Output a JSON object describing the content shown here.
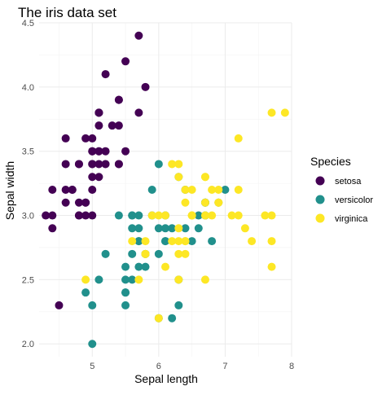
{
  "chart_data": {
    "type": "scatter",
    "title": "The iris data set",
    "xlabel": "Sepal length",
    "ylabel": "Sepal width",
    "xlim": [
      4.2,
      8.0
    ],
    "ylim": [
      1.9,
      4.5
    ],
    "x_ticks": [
      5,
      6,
      7,
      8
    ],
    "y_ticks": [
      2.0,
      2.5,
      3.0,
      3.5,
      4.0,
      4.5
    ],
    "y_tick_labels": [
      "2.0",
      "2.5",
      "3.0",
      "3.5",
      "4.0",
      "4.5"
    ],
    "grid": true,
    "legend": {
      "title": "Species",
      "position": "right"
    },
    "series": [
      {
        "name": "setosa",
        "color": "#440154",
        "points": [
          [
            5.1,
            3.5
          ],
          [
            4.9,
            3.0
          ],
          [
            4.7,
            3.2
          ],
          [
            4.6,
            3.1
          ],
          [
            5.0,
            3.6
          ],
          [
            5.4,
            3.9
          ],
          [
            4.6,
            3.4
          ],
          [
            5.0,
            3.4
          ],
          [
            4.4,
            2.9
          ],
          [
            4.9,
            3.1
          ],
          [
            5.4,
            3.7
          ],
          [
            4.8,
            3.4
          ],
          [
            4.8,
            3.0
          ],
          [
            4.3,
            3.0
          ],
          [
            5.8,
            4.0
          ],
          [
            5.7,
            4.4
          ],
          [
            5.4,
            3.9
          ],
          [
            5.1,
            3.5
          ],
          [
            5.7,
            3.8
          ],
          [
            5.1,
            3.8
          ],
          [
            5.4,
            3.4
          ],
          [
            5.1,
            3.7
          ],
          [
            4.6,
            3.6
          ],
          [
            5.1,
            3.3
          ],
          [
            4.8,
            3.4
          ],
          [
            5.0,
            3.0
          ],
          [
            5.0,
            3.4
          ],
          [
            5.2,
            3.5
          ],
          [
            5.2,
            3.4
          ],
          [
            4.7,
            3.2
          ],
          [
            4.8,
            3.1
          ],
          [
            5.4,
            3.4
          ],
          [
            5.2,
            4.1
          ],
          [
            5.5,
            4.2
          ],
          [
            4.9,
            3.1
          ],
          [
            5.0,
            3.2
          ],
          [
            5.5,
            3.5
          ],
          [
            4.9,
            3.6
          ],
          [
            4.4,
            3.0
          ],
          [
            5.1,
            3.4
          ],
          [
            5.0,
            3.5
          ],
          [
            4.5,
            2.3
          ],
          [
            4.4,
            3.2
          ],
          [
            5.0,
            3.5
          ],
          [
            5.1,
            3.8
          ],
          [
            4.8,
            3.0
          ],
          [
            5.1,
            3.8
          ],
          [
            4.6,
            3.2
          ],
          [
            5.3,
            3.7
          ],
          [
            5.0,
            3.3
          ]
        ]
      },
      {
        "name": "versicolor",
        "color": "#21908c",
        "points": [
          [
            7.0,
            3.2
          ],
          [
            6.4,
            3.2
          ],
          [
            6.9,
            3.1
          ],
          [
            5.5,
            2.3
          ],
          [
            6.5,
            2.8
          ],
          [
            5.7,
            2.8
          ],
          [
            6.3,
            3.3
          ],
          [
            4.9,
            2.4
          ],
          [
            6.6,
            2.9
          ],
          [
            5.2,
            2.7
          ],
          [
            5.0,
            2.0
          ],
          [
            5.9,
            3.0
          ],
          [
            6.0,
            2.2
          ],
          [
            6.1,
            2.9
          ],
          [
            5.6,
            2.9
          ],
          [
            6.7,
            3.1
          ],
          [
            5.6,
            3.0
          ],
          [
            5.8,
            2.7
          ],
          [
            6.2,
            2.2
          ],
          [
            5.6,
            2.5
          ],
          [
            5.9,
            3.2
          ],
          [
            6.1,
            2.8
          ],
          [
            6.3,
            2.5
          ],
          [
            6.1,
            2.8
          ],
          [
            6.4,
            2.9
          ],
          [
            6.6,
            3.0
          ],
          [
            6.8,
            2.8
          ],
          [
            6.7,
            3.0
          ],
          [
            6.0,
            2.9
          ],
          [
            5.7,
            2.6
          ],
          [
            5.5,
            2.4
          ],
          [
            5.5,
            2.4
          ],
          [
            5.8,
            2.7
          ],
          [
            6.0,
            2.7
          ],
          [
            5.4,
            3.0
          ],
          [
            6.0,
            3.4
          ],
          [
            6.7,
            3.1
          ],
          [
            6.3,
            2.3
          ],
          [
            5.6,
            3.0
          ],
          [
            5.5,
            2.5
          ],
          [
            5.5,
            2.6
          ],
          [
            6.1,
            3.0
          ],
          [
            5.8,
            2.6
          ],
          [
            5.0,
            2.3
          ],
          [
            5.6,
            2.7
          ],
          [
            5.7,
            3.0
          ],
          [
            5.7,
            2.9
          ],
          [
            6.2,
            2.9
          ],
          [
            5.1,
            2.5
          ],
          [
            5.7,
            2.8
          ]
        ]
      },
      {
        "name": "virginica",
        "color": "#fde725",
        "points": [
          [
            6.3,
            3.3
          ],
          [
            5.8,
            2.7
          ],
          [
            7.1,
            3.0
          ],
          [
            6.3,
            2.9
          ],
          [
            6.5,
            3.0
          ],
          [
            7.6,
            3.0
          ],
          [
            4.9,
            2.5
          ],
          [
            7.3,
            2.9
          ],
          [
            6.7,
            2.5
          ],
          [
            7.2,
            3.6
          ],
          [
            6.5,
            3.2
          ],
          [
            6.4,
            2.7
          ],
          [
            6.8,
            3.0
          ],
          [
            5.7,
            2.5
          ],
          [
            5.8,
            2.8
          ],
          [
            6.4,
            3.2
          ],
          [
            6.5,
            3.0
          ],
          [
            7.7,
            3.8
          ],
          [
            7.7,
            2.6
          ],
          [
            6.0,
            2.2
          ],
          [
            6.9,
            3.2
          ],
          [
            5.6,
            2.8
          ],
          [
            7.7,
            2.8
          ],
          [
            6.3,
            2.7
          ],
          [
            6.7,
            3.3
          ],
          [
            7.2,
            3.2
          ],
          [
            6.2,
            2.8
          ],
          [
            6.1,
            3.0
          ],
          [
            6.4,
            2.8
          ],
          [
            7.2,
            3.0
          ],
          [
            7.4,
            2.8
          ],
          [
            7.9,
            3.8
          ],
          [
            6.4,
            2.8
          ],
          [
            6.3,
            2.8
          ],
          [
            6.1,
            2.6
          ],
          [
            7.7,
            3.0
          ],
          [
            6.3,
            3.4
          ],
          [
            6.4,
            3.1
          ],
          [
            6.0,
            3.0
          ],
          [
            6.9,
            3.1
          ],
          [
            6.7,
            3.1
          ],
          [
            6.9,
            3.1
          ],
          [
            5.8,
            2.7
          ],
          [
            6.8,
            3.2
          ],
          [
            6.7,
            3.3
          ],
          [
            6.7,
            3.0
          ],
          [
            6.3,
            2.5
          ],
          [
            6.5,
            3.0
          ],
          [
            6.2,
            3.4
          ],
          [
            5.9,
            3.0
          ]
        ]
      }
    ]
  }
}
